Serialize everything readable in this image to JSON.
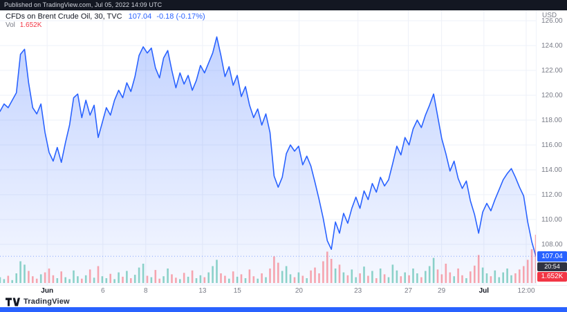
{
  "header": {
    "published_text": "Published on TradingView.com, Jul 05, 2022 14:09 UTC"
  },
  "legend": {
    "symbol_title": "CFDs on Brent Crude Oil, 30, TVC",
    "last_price": "107.04",
    "change": "-0.18 (-0.17%)",
    "vol_label": "Vol",
    "vol_value": "1.652K"
  },
  "price_scale": {
    "currency": "USD",
    "labels": [
      "126.00",
      "124.00",
      "122.00",
      "120.00",
      "118.00",
      "116.00",
      "114.00",
      "112.00",
      "110.00",
      "108.00"
    ],
    "badges": {
      "price": "107.04",
      "countdown": "20:54",
      "volume": "1.652K"
    }
  },
  "time_axis": {
    "labels": [
      {
        "text": "Jun",
        "x": 0.088,
        "major": true
      },
      {
        "text": "6",
        "x": 0.192,
        "major": false
      },
      {
        "text": "8",
        "x": 0.272,
        "major": false
      },
      {
        "text": "13",
        "x": 0.378,
        "major": false
      },
      {
        "text": "15",
        "x": 0.443,
        "major": false
      },
      {
        "text": "20",
        "x": 0.558,
        "major": false
      },
      {
        "text": "23",
        "x": 0.668,
        "major": false
      },
      {
        "text": "27",
        "x": 0.762,
        "major": false
      },
      {
        "text": "29",
        "x": 0.824,
        "major": false
      },
      {
        "text": "Jul",
        "x": 0.903,
        "major": true
      },
      {
        "text": "12:00",
        "x": 0.982,
        "major": false
      }
    ]
  },
  "footer": {
    "brand": "TradingView"
  },
  "colors": {
    "accent": "#2962ff",
    "grid": "#eef1f8",
    "vol_up": "rgba(34,171,148,0.5)",
    "vol_down": "rgba(247,82,95,0.5)",
    "text_muted": "#787b86",
    "text_dark": "#131722",
    "badge_price_bg": "#2962ff",
    "badge_countdown_bg": "#2f3241",
    "badge_volume_bg": "#f23645"
  },
  "chart_data": {
    "type": "line",
    "title": "CFDs on Brent Crude Oil, 30, TVC",
    "ylabel": "USD",
    "ylim": [
      104.8,
      126.8
    ],
    "y_ticks": [
      108,
      110,
      112,
      114,
      116,
      118,
      120,
      122,
      124,
      126
    ],
    "x_ticks": [
      "Jun",
      "6",
      "8",
      "13",
      "15",
      "20",
      "23",
      "27",
      "29",
      "Jul",
      "12:00"
    ],
    "last_price": 107.04,
    "change": -0.18,
    "change_pct": -0.17,
    "last_volume": "1.652K",
    "countdown": "20:54",
    "grid": true,
    "legend_position": "top-left",
    "prices": [
      118.7,
      119.3,
      119.0,
      119.6,
      120.2,
      123.3,
      123.7,
      121.0,
      119.0,
      118.5,
      119.3,
      117.0,
      115.4,
      114.7,
      115.8,
      114.6,
      116.2,
      117.6,
      119.8,
      120.1,
      118.2,
      119.6,
      118.4,
      119.2,
      116.6,
      117.8,
      119.0,
      118.4,
      119.6,
      120.4,
      119.8,
      121.0,
      120.3,
      121.5,
      123.2,
      123.9,
      123.4,
      123.8,
      122.2,
      121.4,
      123.0,
      123.6,
      122.0,
      120.6,
      121.8,
      120.9,
      121.6,
      120.4,
      121.2,
      122.4,
      121.8,
      122.6,
      123.4,
      124.7,
      123.2,
      121.5,
      122.3,
      120.8,
      121.6,
      119.9,
      120.7,
      119.2,
      118.2,
      118.9,
      117.6,
      118.5,
      117.0,
      113.5,
      112.6,
      113.4,
      115.3,
      116.0,
      115.5,
      115.9,
      114.4,
      115.1,
      114.3,
      113.0,
      111.6,
      110.1,
      108.3,
      107.6,
      109.8,
      108.9,
      110.5,
      109.7,
      110.9,
      111.8,
      110.9,
      112.3,
      111.6,
      112.9,
      112.2,
      113.4,
      112.7,
      113.2,
      114.5,
      115.9,
      115.2,
      116.6,
      116.0,
      117.3,
      118.0,
      117.4,
      118.4,
      119.2,
      120.1,
      118.3,
      116.5,
      115.3,
      113.9,
      114.7,
      113.3,
      112.5,
      113.1,
      111.5,
      110.4,
      108.9,
      110.6,
      111.3,
      110.7,
      111.6,
      112.4,
      113.2,
      113.7,
      114.1,
      113.4,
      112.6,
      111.9,
      109.8,
      108.2,
      107.04
    ],
    "volume_rel": [
      12,
      8,
      15,
      6,
      20,
      45,
      38,
      25,
      14,
      9,
      18,
      22,
      30,
      16,
      10,
      24,
      12,
      8,
      26,
      14,
      9,
      16,
      28,
      11,
      35,
      14,
      10,
      19,
      8,
      22,
      13,
      25,
      10,
      17,
      32,
      40,
      15,
      12,
      27,
      9,
      14,
      30,
      18,
      11,
      8,
      21,
      13,
      26,
      10,
      16,
      12,
      22,
      35,
      48,
      20,
      15,
      9,
      24,
      13,
      18,
      10,
      28,
      14,
      9,
      20,
      12,
      30,
      55,
      42,
      25,
      35,
      18,
      12,
      22,
      15,
      10,
      26,
      32,
      20,
      45,
      65,
      50,
      30,
      38,
      22,
      16,
      28,
      12,
      20,
      34,
      15,
      25,
      10,
      30,
      18,
      12,
      38,
      26,
      14,
      22,
      16,
      30,
      20,
      12,
      25,
      35,
      52,
      28,
      18,
      40,
      22,
      14,
      30,
      16,
      10,
      24,
      36,
      58,
      32,
      20,
      14,
      26,
      12,
      22,
      30,
      16,
      20,
      28,
      35,
      48,
      70,
      100
    ]
  }
}
